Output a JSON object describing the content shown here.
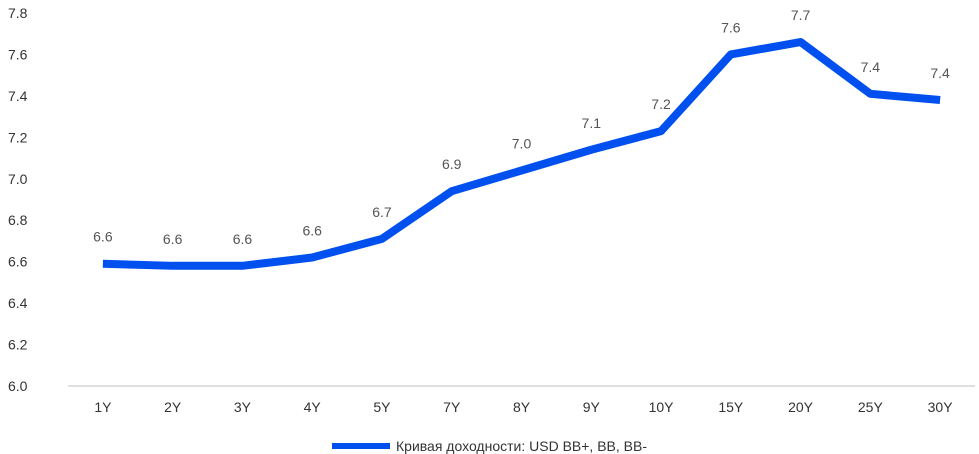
{
  "chart_data": {
    "type": "line",
    "title": "",
    "xlabel": "",
    "ylabel": "",
    "categories": [
      "1Y",
      "2Y",
      "3Y",
      "4Y",
      "5Y",
      "7Y",
      "8Y",
      "9Y",
      "10Y",
      "15Y",
      "20Y",
      "25Y",
      "30Y"
    ],
    "series": [
      {
        "name": "Кривая доходности: USD BB+, BB, BB-",
        "values": [
          6.59,
          6.58,
          6.58,
          6.62,
          6.71,
          6.94,
          7.04,
          7.14,
          7.23,
          7.6,
          7.66,
          7.41,
          7.38
        ],
        "data_labels": [
          "6.6",
          "6.6",
          "6.6",
          "6.6",
          "6.7",
          "6.9",
          "7.0",
          "7.1",
          "7.2",
          "7.6",
          "7.7",
          "7.4",
          "7.4"
        ],
        "color": "#0050f0"
      }
    ],
    "ylim": [
      6.0,
      7.8
    ],
    "yticks": [
      "6.0",
      "6.2",
      "6.4",
      "6.6",
      "6.8",
      "7.0",
      "7.2",
      "7.4",
      "7.6",
      "7.8"
    ],
    "grid": false,
    "legend": "bottom"
  },
  "legend": {
    "label": "Кривая доходности: USD BB+, BB, BB-"
  }
}
